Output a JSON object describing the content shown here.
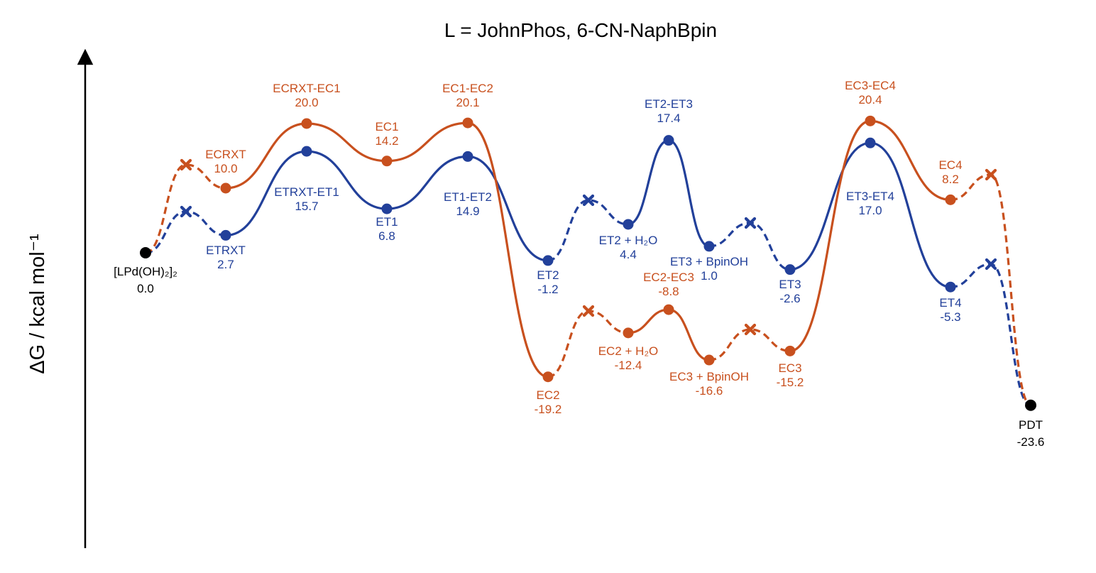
{
  "chart_data": {
    "type": "line",
    "title": "L = JohnPhos, 6-CN-NaphBpin",
    "ylabel": "ΔG / kcal mol⁻¹",
    "xlabel": "",
    "grid": false,
    "colors": {
      "ET": "#22409a",
      "EC": "#c8501e",
      "shared": "#000000"
    },
    "shared_points": [
      {
        "id": "start",
        "name": "[LPd(OH)₂]₂",
        "value": "0.0",
        "y": 0.0
      },
      {
        "id": "pdt",
        "name": "PDT",
        "value": "-23.6",
        "y": -23.6
      }
    ],
    "series": [
      {
        "id": "ET",
        "points": [
          {
            "name": "ETRXT",
            "value": "2.7",
            "y": 2.7
          },
          {
            "name": "ETRXT-ET1",
            "value": "15.7",
            "y": 15.7
          },
          {
            "name": "ET1",
            "value": "6.8",
            "y": 6.8
          },
          {
            "name": "ET1-ET2",
            "value": "14.9",
            "y": 14.9
          },
          {
            "name": "ET2",
            "value": "-1.2",
            "y": -1.2
          },
          {
            "name": "ET2 + H₂O",
            "value": "4.4",
            "y": 4.4
          },
          {
            "name": "ET2-ET3",
            "value": "17.4",
            "y": 17.4
          },
          {
            "name": "ET3 + BpinOH",
            "value": "1.0",
            "y": 1.0
          },
          {
            "name": "ET3",
            "value": "-2.6",
            "y": -2.6
          },
          {
            "name": "ET3-ET4",
            "value": "17.0",
            "y": 17.0
          },
          {
            "name": "ET4",
            "value": "-5.3",
            "y": -5.3
          }
        ]
      },
      {
        "id": "EC",
        "points": [
          {
            "name": "ECRXT",
            "value": "10.0",
            "y": 10.0
          },
          {
            "name": "ECRXT-EC1",
            "value": "20.0",
            "y": 20.0
          },
          {
            "name": "EC1",
            "value": "14.2",
            "y": 14.2
          },
          {
            "name": "EC1-EC2",
            "value": "20.1",
            "y": 20.1
          },
          {
            "name": "EC2",
            "value": "-19.2",
            "y": -19.2
          },
          {
            "name": "EC2 + H₂O",
            "value": "-12.4",
            "y": -12.4
          },
          {
            "name": "EC2-EC3",
            "value": "-8.8",
            "y": -8.8
          },
          {
            "name": "EC3 + BpinOH",
            "value": "-16.6",
            "y": -16.6
          },
          {
            "name": "EC3",
            "value": "-15.2",
            "y": -15.2
          },
          {
            "name": "EC3-EC4",
            "value": "20.4",
            "y": 20.4
          },
          {
            "name": "EC4",
            "value": "8.2",
            "y": 8.2
          }
        ]
      }
    ]
  }
}
